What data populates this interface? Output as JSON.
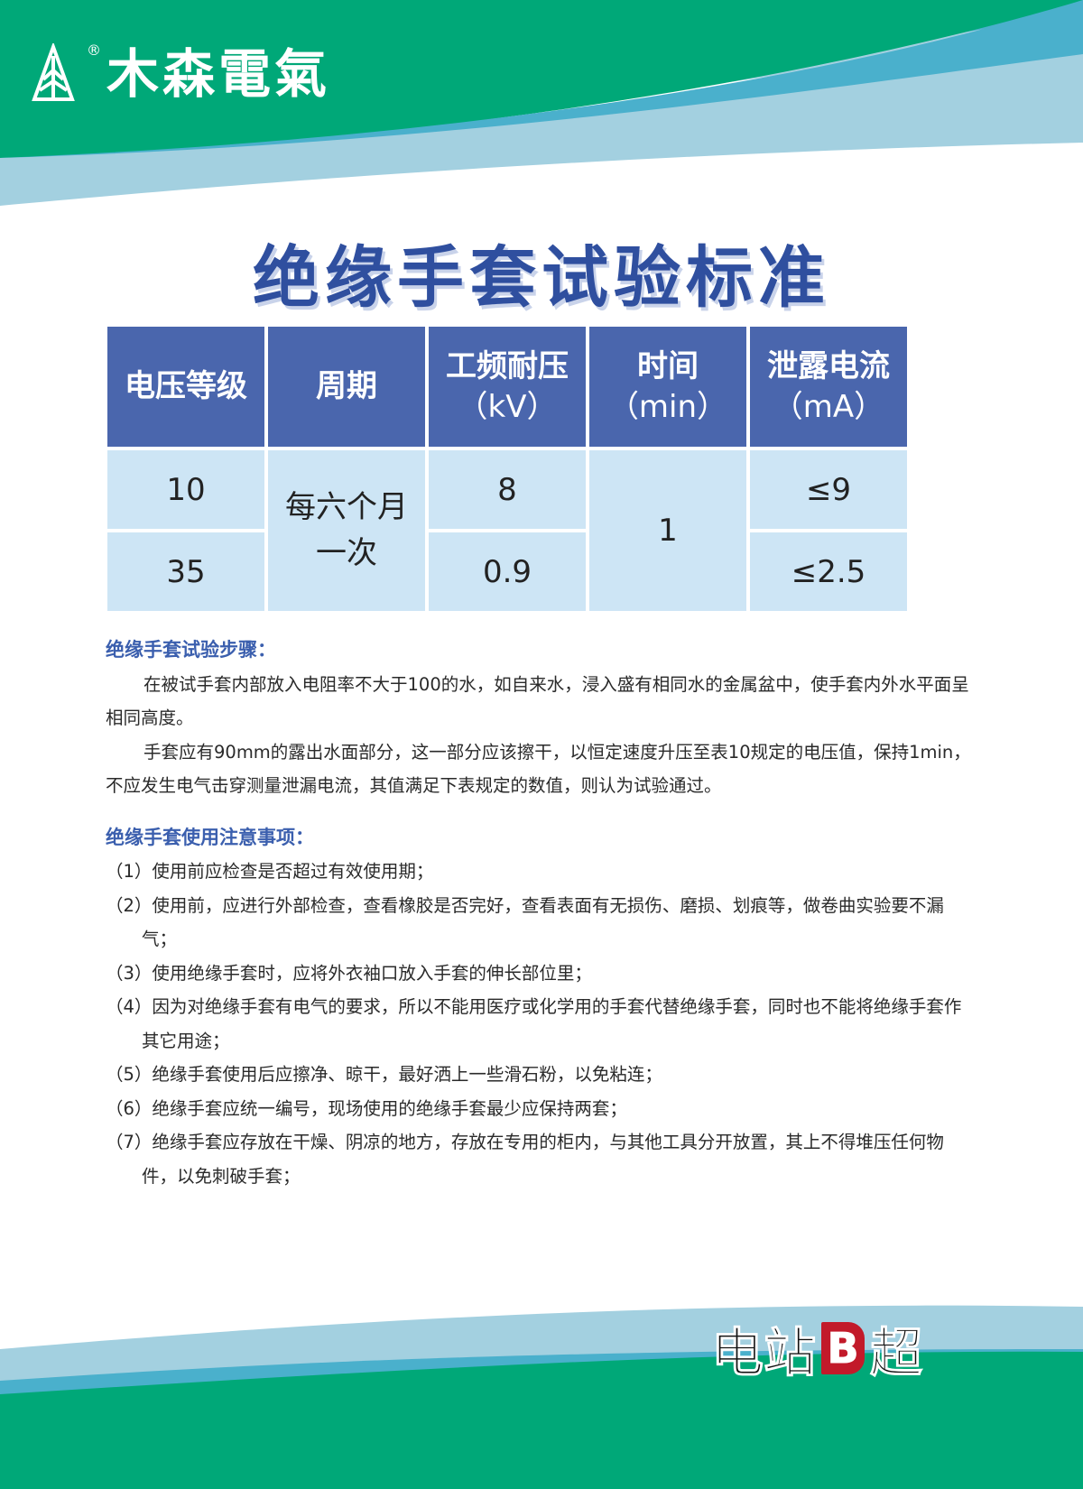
{
  "brand": {
    "name": "木森電氣",
    "registered": "®"
  },
  "title": "绝缘手套试验标准",
  "table": {
    "headers": [
      {
        "main": "电压等级",
        "unit": ""
      },
      {
        "main": "工频耐压",
        "unit": "（kV）"
      },
      {
        "main": "周期",
        "unit": ""
      },
      {
        "main": "时间",
        "unit": "（min）"
      },
      {
        "main": "泄露电流",
        "unit": "（mA）"
      }
    ],
    "rows": [
      {
        "voltage": "10",
        "withstand": "8",
        "leakage": "≤9"
      },
      {
        "voltage": "35",
        "withstand": "0.9",
        "leakage": "≤2.5"
      }
    ],
    "period": "每六个月一次",
    "time": "1"
  },
  "steps": {
    "heading": "绝缘手套试验步骤：",
    "paragraphs": [
      "在被试手套内部放入电阻率不大于100的水，如自来水，浸入盛有相同水的金属盆中，使手套内外水平面呈相同高度。",
      "手套应有90mm的露出水面部分，这一部分应该擦干，以恒定速度升压至表10规定的电压值，保持1min，不应发生电气击穿测量泄漏电流，其值满足下表规定的数值，则认为试验通过。"
    ]
  },
  "notes": {
    "heading": "绝缘手套使用注意事项：",
    "items": [
      "（1）使用前应检查是否超过有效使用期；",
      "（2）使用前，应进行外部检查，查看橡胶是否完好，查看表面有无损伤、磨损、划痕等，做卷曲实验要不漏气；",
      "（3）使用绝缘手套时，应将外衣袖口放入手套的伸长部位里；",
      "（4）因为对绝缘手套有电气的要求，所以不能用医疗或化学用的手套代替绝缘手套，同时也不能将绝缘手套作其它用途；",
      "（5）绝缘手套使用后应擦净、晾干，最好洒上一些滑石粉，以免粘连；",
      "（6）绝缘手套应统一编号，现场使用的绝缘手套最少应保持两套；",
      "（7）绝缘手套应存放在干燥、阴凉的地方，存放在专用的柜内，与其他工具分开放置，其上不得堆压任何物件，以免刺破手套；"
    ]
  },
  "footer_brand": {
    "left": "电站",
    "badge": "B",
    "right": "超"
  },
  "colors": {
    "green": "#00a878",
    "blue": "#4ab0cc",
    "light_blue": "#a3d0e0",
    "header": "#4a66ad",
    "cell": "#cde5f5",
    "heading": "#3b5fae"
  }
}
